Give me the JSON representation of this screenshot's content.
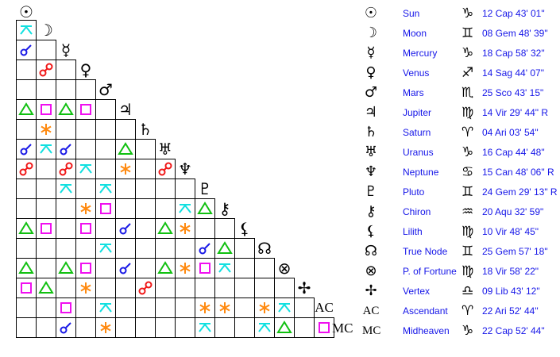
{
  "aspect_colors": {
    "conjunction": "#1a1ae6",
    "opposition": "#f01818",
    "trine": "#10c010",
    "square": "#f010f0",
    "sextile": "#ff8a10",
    "quincunx": "#10e0e0"
  },
  "planets": [
    {
      "name": "Sun",
      "glyph": "☉",
      "sign_glyph": "♑",
      "position": "12 Cap 43' 01\""
    },
    {
      "name": "Moon",
      "glyph": "☽",
      "sign_glyph": "♊",
      "position": "08 Gem 48' 39\""
    },
    {
      "name": "Mercury",
      "glyph": "☿",
      "sign_glyph": "♑",
      "position": "18 Cap 58' 32\""
    },
    {
      "name": "Venus",
      "glyph": "♀",
      "sign_glyph": "♐",
      "position": "14 Sag 44' 07\""
    },
    {
      "name": "Mars",
      "glyph": "♂",
      "sign_glyph": "♏",
      "position": "25 Sco 43' 15\""
    },
    {
      "name": "Jupiter",
      "glyph": "♃",
      "sign_glyph": "♍",
      "position": "14 Vir 29' 44\" R"
    },
    {
      "name": "Saturn",
      "glyph": "♄",
      "sign_glyph": "♈",
      "position": "04 Ari 03' 54\""
    },
    {
      "name": "Uranus",
      "glyph": "♅",
      "sign_glyph": "♑",
      "position": "16 Cap 44' 48\""
    },
    {
      "name": "Neptune",
      "glyph": "♆",
      "sign_glyph": "♋",
      "position": "15 Can 48' 06\" R"
    },
    {
      "name": "Pluto",
      "glyph": "♇",
      "sign_glyph": "♊",
      "position": "24 Gem 29' 13\" R"
    },
    {
      "name": "Chiron",
      "glyph": "⚷",
      "sign_glyph": "♒",
      "position": "20 Aqu 32' 59\""
    },
    {
      "name": "Lilith",
      "glyph": "⚸",
      "sign_glyph": "♍",
      "position": "10 Vir 48' 45\""
    },
    {
      "name": "True Node",
      "glyph": "☊",
      "sign_glyph": "♊",
      "position": "25 Gem 57' 18\""
    },
    {
      "name": "P. of Fortune",
      "glyph": "⊗",
      "sign_glyph": "♍",
      "position": "18 Vir 58' 22\""
    },
    {
      "name": "Vertex",
      "glyph": "✢",
      "sign_glyph": "♎",
      "position": "09 Lib 43' 12\""
    },
    {
      "name": "Ascendant",
      "glyph": "AC",
      "sign_glyph": "♈",
      "position": "22 Ari 52' 44\""
    },
    {
      "name": "Midheaven",
      "glyph": "MC",
      "sign_glyph": "♑",
      "position": "22 Cap 52' 44\""
    }
  ],
  "aspect_grid": [
    [],
    [
      "quincunx"
    ],
    [
      "conjunction",
      ""
    ],
    [
      "",
      "opposition",
      ""
    ],
    [
      "",
      "",
      "",
      ""
    ],
    [
      "trine",
      "square",
      "trine",
      "square",
      ""
    ],
    [
      "",
      "sextile",
      "",
      "",
      "",
      ""
    ],
    [
      "conjunction",
      "quincunx",
      "conjunction",
      "",
      "",
      "trine",
      ""
    ],
    [
      "opposition",
      "",
      "opposition",
      "quincunx",
      "",
      "sextile",
      "",
      "opposition"
    ],
    [
      "",
      "",
      "quincunx",
      "",
      "quincunx",
      "",
      "",
      "",
      ""
    ],
    [
      "",
      "",
      "",
      "sextile",
      "square",
      "",
      "",
      "",
      "quincunx",
      "trine"
    ],
    [
      "trine",
      "square",
      "",
      "square",
      "",
      "conjunction",
      "",
      "trine",
      "sextile",
      "",
      ""
    ],
    [
      "",
      "",
      "",
      "",
      "quincunx",
      "",
      "",
      "",
      "",
      "conjunction",
      "trine",
      ""
    ],
    [
      "trine",
      "",
      "trine",
      "square",
      "",
      "conjunction",
      "",
      "trine",
      "sextile",
      "square",
      "quincunx",
      "",
      ""
    ],
    [
      "square",
      "trine",
      "",
      "sextile",
      "",
      "",
      "opposition",
      "",
      "",
      "",
      "",
      "",
      "",
      ""
    ],
    [
      "",
      "",
      "square",
      "",
      "quincunx",
      "",
      "",
      "",
      "",
      "sextile",
      "sextile",
      "",
      "sextile",
      "quincunx",
      ""
    ],
    [
      "",
      "",
      "conjunction",
      "",
      "sextile",
      "",
      "",
      "",
      "",
      "quincunx",
      "",
      "",
      "quincunx",
      "trine",
      "",
      "square"
    ]
  ]
}
